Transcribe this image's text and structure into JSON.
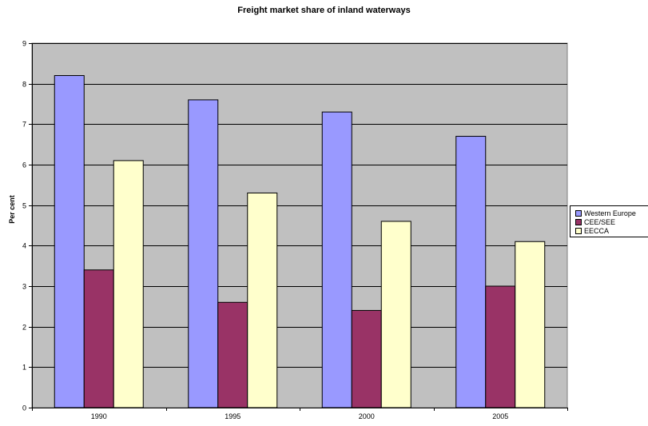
{
  "chart_data": {
    "type": "bar",
    "title": "Freight market share of inland waterways",
    "xlabel": "",
    "ylabel": "Per cent",
    "categories": [
      "1990",
      "1995",
      "2000",
      "2005"
    ],
    "series": [
      {
        "name": "Western Europe",
        "color": "#9999ff",
        "values": [
          8.2,
          7.6,
          7.3,
          6.7
        ]
      },
      {
        "name": "CEE/SEE",
        "color": "#993366",
        "values": [
          3.4,
          2.6,
          2.4,
          3.0
        ]
      },
      {
        "name": "EECCA",
        "color": "#ffffcc",
        "values": [
          6.1,
          5.3,
          4.6,
          4.1
        ]
      }
    ],
    "ylim": [
      0,
      9
    ],
    "yticks": [
      "0",
      "1",
      "2",
      "3",
      "4",
      "5",
      "6",
      "7",
      "8",
      "9"
    ],
    "grid": true,
    "plot_background": "#c0c0c0",
    "legend_position": "right"
  }
}
